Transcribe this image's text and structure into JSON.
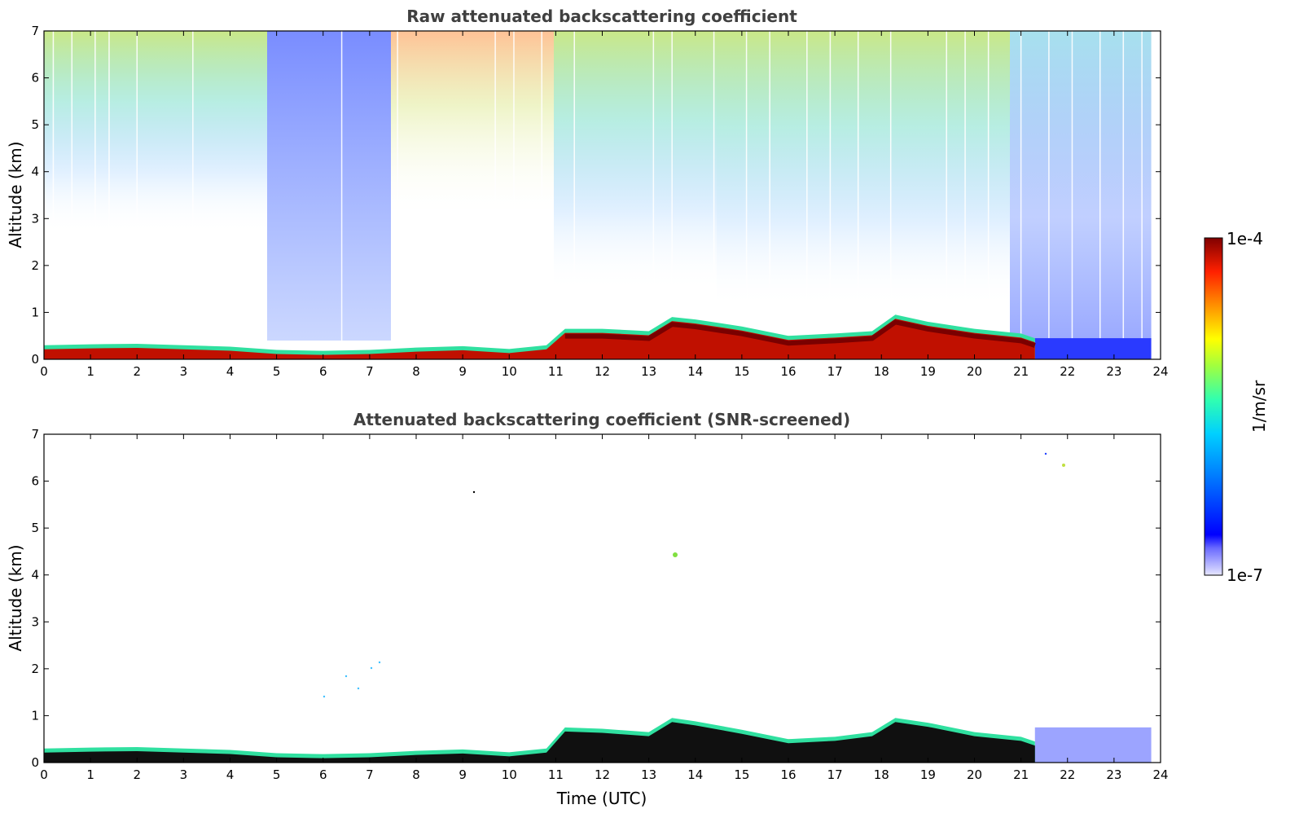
{
  "chart_data": [
    {
      "type": "heatmap",
      "title": "Raw attenuated backscattering coefficient",
      "xlabel": "",
      "ylabel": "Altitude (km)",
      "xlim": [
        0,
        24
      ],
      "ylim": [
        0,
        7
      ],
      "xticks": [
        "0",
        "1",
        "2",
        "3",
        "4",
        "5",
        "6",
        "7",
        "8",
        "9",
        "10",
        "11",
        "12",
        "13",
        "14",
        "15",
        "16",
        "17",
        "18",
        "19",
        "20",
        "21",
        "22",
        "23",
        "24"
      ],
      "yticks": [
        "0",
        "1",
        "2",
        "3",
        "4",
        "5",
        "6",
        "7"
      ],
      "scale": "log",
      "layer_top_km": [
        [
          0,
          0.3
        ],
        [
          1,
          0.32
        ],
        [
          2,
          0.33
        ],
        [
          3,
          0.3
        ],
        [
          4,
          0.27
        ],
        [
          5,
          0.2
        ],
        [
          6,
          0.18
        ],
        [
          7,
          0.2
        ],
        [
          8,
          0.25
        ],
        [
          9,
          0.28
        ],
        [
          10,
          0.22
        ],
        [
          10.8,
          0.3
        ],
        [
          11.2,
          0.65
        ],
        [
          12,
          0.65
        ],
        [
          13,
          0.6
        ],
        [
          13.5,
          0.9
        ],
        [
          14,
          0.85
        ],
        [
          15,
          0.7
        ],
        [
          16,
          0.5
        ],
        [
          17,
          0.55
        ],
        [
          17.8,
          0.6
        ],
        [
          18.3,
          0.95
        ],
        [
          19,
          0.8
        ],
        [
          20,
          0.65
        ],
        [
          21,
          0.55
        ],
        [
          21.3,
          0.45
        ]
      ]
    },
    {
      "type": "heatmap",
      "title": "Attenuated backscattering coefficient (SNR-screened)",
      "xlabel": "Time (UTC)",
      "ylabel": "Altitude (km)",
      "xlim": [
        0,
        24
      ],
      "ylim": [
        0,
        7
      ],
      "xticks": [
        "0",
        "1",
        "2",
        "3",
        "4",
        "5",
        "6",
        "7",
        "8",
        "9",
        "10",
        "11",
        "12",
        "13",
        "14",
        "15",
        "16",
        "17",
        "18",
        "19",
        "20",
        "21",
        "22",
        "23",
        "24"
      ],
      "yticks": [
        "0",
        "1",
        "2",
        "3",
        "4",
        "5",
        "6",
        "7"
      ],
      "scale": "log",
      "layer_top_km": [
        [
          0,
          0.3
        ],
        [
          1,
          0.32
        ],
        [
          2,
          0.33
        ],
        [
          3,
          0.3
        ],
        [
          4,
          0.27
        ],
        [
          5,
          0.2
        ],
        [
          6,
          0.18
        ],
        [
          7,
          0.2
        ],
        [
          8,
          0.25
        ],
        [
          9,
          0.28
        ],
        [
          10,
          0.22
        ],
        [
          10.8,
          0.3
        ],
        [
          11.2,
          0.75
        ],
        [
          12,
          0.72
        ],
        [
          13,
          0.65
        ],
        [
          13.5,
          0.95
        ],
        [
          14,
          0.88
        ],
        [
          15,
          0.7
        ],
        [
          16,
          0.5
        ],
        [
          17,
          0.55
        ],
        [
          17.8,
          0.65
        ],
        [
          18.3,
          0.95
        ],
        [
          19,
          0.85
        ],
        [
          20,
          0.65
        ],
        [
          21,
          0.55
        ],
        [
          21.3,
          0.45
        ]
      ]
    }
  ],
  "colorbar": {
    "label": "1/m/sr",
    "max_label": "1e-4",
    "min_label": "1e-7",
    "range": [
      1e-07,
      0.0001
    ],
    "colors": [
      "#e6e6ff",
      "#0000ff",
      "#0080ff",
      "#00d0ff",
      "#30ffb0",
      "#a0ff40",
      "#ffff00",
      "#ff9000",
      "#ff2000",
      "#800000"
    ]
  }
}
